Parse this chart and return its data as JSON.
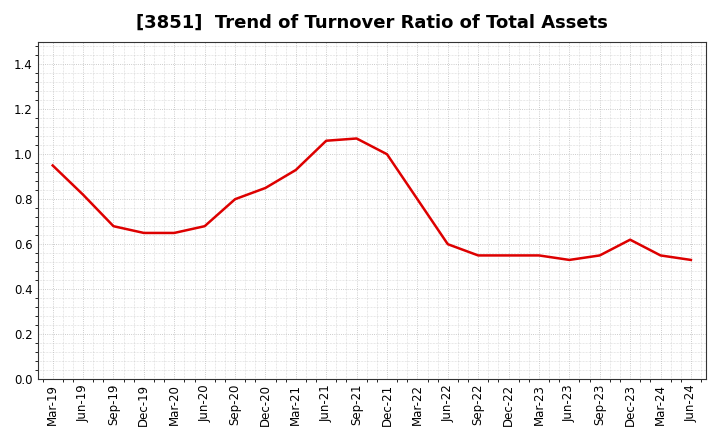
{
  "title": "[3851]  Trend of Turnover Ratio of Total Assets",
  "x_labels": [
    "Mar-19",
    "Jun-19",
    "Sep-19",
    "Dec-19",
    "Mar-20",
    "Jun-20",
    "Sep-20",
    "Dec-20",
    "Mar-21",
    "Jun-21",
    "Sep-21",
    "Dec-21",
    "Mar-22",
    "Jun-22",
    "Sep-22",
    "Dec-22",
    "Mar-23",
    "Jun-23",
    "Sep-23",
    "Dec-23",
    "Mar-24",
    "Jun-24"
  ],
  "y_values": [
    0.95,
    0.82,
    0.68,
    0.65,
    0.65,
    0.68,
    0.8,
    0.85,
    0.93,
    1.06,
    1.07,
    1.0,
    0.8,
    0.6,
    0.55,
    0.55,
    0.55,
    0.53,
    0.55,
    0.62,
    0.55,
    0.53
  ],
  "line_color": "#dd0000",
  "line_width": 1.8,
  "ylim": [
    0.0,
    1.5
  ],
  "yticks": [
    0.0,
    0.2,
    0.4,
    0.6,
    0.8,
    1.0,
    1.2,
    1.4
  ],
  "grid_color": "#bbbbbb",
  "bg_color": "#ffffff",
  "title_fontsize": 13,
  "tick_fontsize": 8.5
}
